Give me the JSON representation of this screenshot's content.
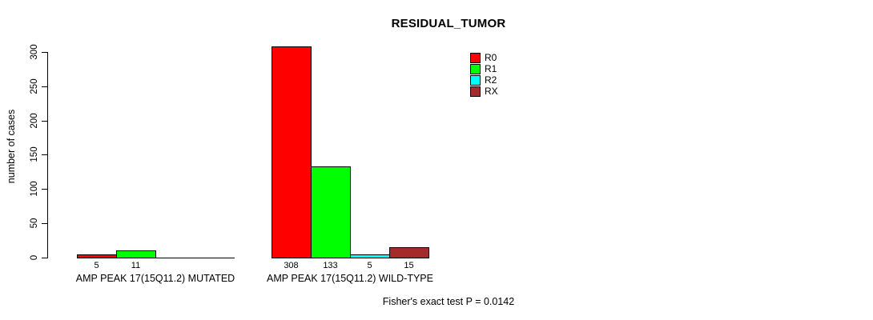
{
  "title": "RESIDUAL_TUMOR",
  "footnote": "Fisher's exact test P = 0.0142",
  "chart_data": {
    "type": "bar",
    "title": "RESIDUAL_TUMOR",
    "xlabel": "",
    "ylabel": "number of cases",
    "ylim": [
      0,
      300
    ],
    "yticks": [
      0,
      50,
      100,
      150,
      200,
      250,
      300
    ],
    "grid": false,
    "legend_position": "top-right-inside",
    "bar_border_color": "#000000",
    "categories": [
      "AMP PEAK 17(15Q11.2) MUTATED",
      "AMP PEAK 17(15Q11.2) WILD-TYPE"
    ],
    "series": [
      {
        "name": "R0",
        "color": "#ff0000",
        "values": [
          5,
          308
        ]
      },
      {
        "name": "R1",
        "color": "#00ff00",
        "values": [
          11,
          133
        ]
      },
      {
        "name": "R2",
        "color": "#00ffff",
        "values": [
          0,
          5
        ]
      },
      {
        "name": "RX",
        "color": "#a52a2a",
        "values": [
          0,
          15
        ]
      }
    ],
    "value_labels": {
      "shown": true,
      "rule": "nonzero-bars-only",
      "values": [
        [
          5,
          11,
          null,
          null
        ],
        [
          308,
          133,
          5,
          15
        ]
      ]
    },
    "annotation": "Fisher's exact test P = 0.0142"
  }
}
